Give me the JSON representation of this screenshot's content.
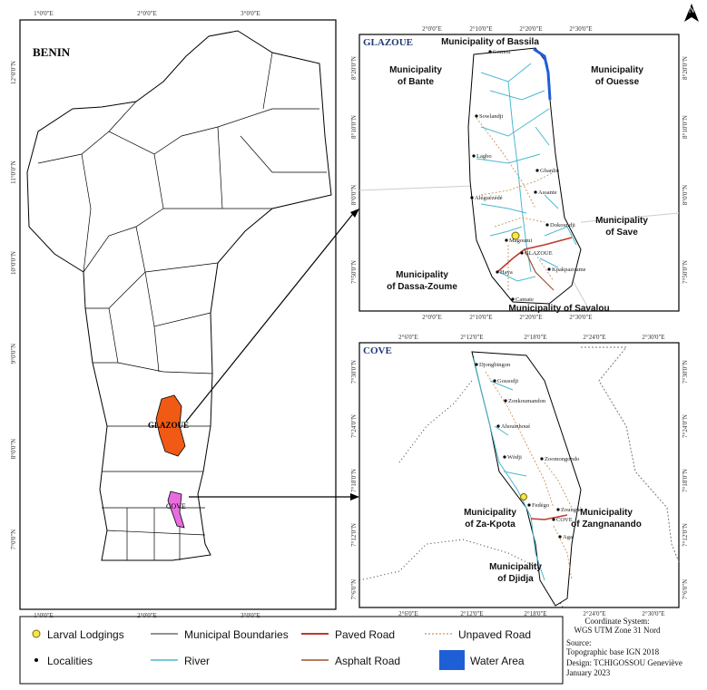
{
  "north": "N",
  "main_map": {
    "title": "BENIN",
    "top_ticks": [
      "1°0'0\"E",
      "2°0'0\"E",
      "3°0'0\"E"
    ],
    "bottom_ticks": [
      "1°0'0\"E",
      "2°0'0\"E",
      "3°0'0\"E"
    ],
    "left_ticks": [
      "12°0'0\"N",
      "11°0'0\"N",
      "10°0'0\"N",
      "9°0'0\"N",
      "8°0'0\"N",
      "7°0'0\"N"
    ],
    "labels": [
      "GLAZOUE",
      "COVE"
    ]
  },
  "glazoue": {
    "title": "GLAZOUE",
    "top_ticks": [
      "2°0'0\"E",
      "2°10'0\"E",
      "2°20'0\"E",
      "2°30'0\"E"
    ],
    "bottom_ticks": [
      "2°0'0\"E",
      "2°10'0\"E",
      "2°20'0\"E",
      "2°30'0\"E"
    ],
    "side_ticks": [
      "8°20'0\"N",
      "8°10'0\"N",
      "8°0'0\"N",
      "7°50'0\"N"
    ],
    "municipalities": [
      "Municipality of Bassila",
      "Municipality of Bante",
      "Municipality of Ouesse",
      "Municipality of Save",
      "Municipality of Dassa-Zoume",
      "Municipality of Savalou"
    ],
    "localities": [
      "Gomon",
      "Sowlandji",
      "Lagbo",
      "Gbanlin",
      "Aléguézédé",
      "Assante",
      "Dokoundji",
      "Magoumi",
      "GLAZOUE",
      "Haya",
      "Kpakpazoume",
      "Camate"
    ]
  },
  "cove": {
    "title": "COVE",
    "top_ticks": [
      "2°6'0\"E",
      "2°12'0\"E",
      "2°18'0\"E",
      "2°24'0\"E",
      "2°30'0\"E"
    ],
    "bottom_ticks": [
      "2°6'0\"E",
      "2°12'0\"E",
      "2°18'0\"E",
      "2°24'0\"E",
      "2°30'0\"E"
    ],
    "side_ticks": [
      "7°30'0\"N",
      "7°24'0\"N",
      "7°18'0\"N",
      "7°12'0\"N",
      "7°6'0\"N"
    ],
    "municipalities": [
      "Municipality of Za-Kpota",
      "Municipality of Zangnanando",
      "Municipality of Djidja"
    ],
    "localities": [
      "Djongbingon",
      "Gossodji",
      "Zonkoumandon",
      "Ahouinhoué",
      "Wèdji",
      "Zoomongondo",
      "Fedègo",
      "Zounguè",
      "COVE",
      "Aga"
    ]
  },
  "legend": [
    "Larval Lodgings",
    "Municipal Boundaries",
    "Paved Road",
    "Unpaved Road",
    "Localities",
    "River",
    "Asphalt Road",
    "Water Area"
  ],
  "source": [
    "Coordinate System:",
    "WGS UTM Zone 31 Nord",
    "Source:",
    "Topographic base IGN 2018",
    "Design: TCHIGOSSOU Geneviève",
    "January 2023"
  ]
}
